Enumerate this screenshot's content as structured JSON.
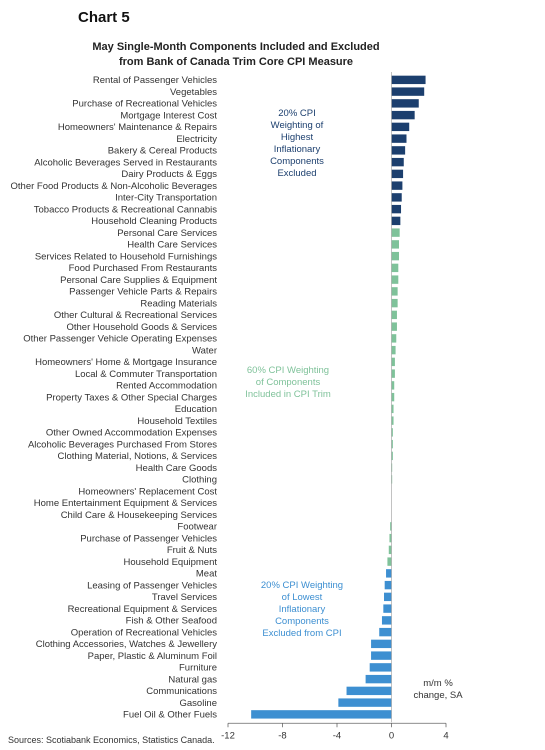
{
  "chart_label": "Chart 5",
  "source": "Sources: Scotiabank Economics, Statistics Canada.",
  "chart_data": {
    "type": "bar",
    "orientation": "horizontal",
    "title": "May Single-Month Components Included and Excluded from Bank of Canada Trim Core CPI Measure",
    "unit_label": [
      "m/m %",
      "change, SA"
    ],
    "xlim": [
      -12,
      4
    ],
    "xticks": [
      -12,
      -8,
      -4,
      0,
      4
    ],
    "grid": false,
    "colors": {
      "high": "#1c3f6e",
      "middle": "#7fc29a",
      "low": "#3d8fd1"
    },
    "categories": [
      "Rental of Passenger Vehicles",
      "Vegetables",
      "Purchase of Recreational Vehicles",
      "Mortgage Interest Cost",
      "Homeowners' Maintenance & Repairs",
      "Electricity",
      "Bakery & Cereal Products",
      "Alcoholic Beverages Served in Restaurants",
      "Dairy Products & Eggs",
      "Other Food Products & Non-Alcoholic Beverages",
      "Inter-City Transportation",
      "Tobacco Products & Recreational Cannabis",
      "Household Cleaning Products",
      "Personal Care Services",
      "Health Care Services",
      "Services Related to Household Furnishings",
      "Food Purchased From Restaurants",
      "Personal Care Supplies & Equipment",
      "Passenger Vehicle Parts & Repairs",
      "Reading Materials",
      "Other Cultural & Recreational Services",
      "Other Household Goods & Services",
      "Other Passenger Vehicle Operating Expenses",
      "Water",
      "Homeowners' Home & Mortgage Insurance",
      "Local & Commuter Transportation",
      "Rented Accommodation",
      "Property Taxes & Other Special Charges",
      "Education",
      "Household Textiles",
      "Other Owned Accommodation Expenses",
      "Alcoholic Beverages Purchased From Stores",
      "Clothing Material, Notions, & Services",
      "Health Care Goods",
      "Clothing",
      "Homeowners' Replacement Cost",
      "Home Entertainment Equipment & Services",
      "Child Care & Housekeeping Services",
      "Footwear",
      "Purchase of Passenger Vehicles",
      "Fruit & Nuts",
      "Household Equipment",
      "Meat",
      "Leasing of Passenger Vehicles",
      "Travel Services",
      "Recreational Equipment & Services",
      "Fish & Other Seafood",
      "Operation of Recreational Vehicles",
      "Clothing Accessories, Watches & Jewellery",
      "Paper, Plastic & Aluminum Foil",
      "Furniture",
      "Natural gas",
      "Communications",
      "Gasoline",
      "Fuel Oil & Other Fuels"
    ],
    "values": [
      2.5,
      2.4,
      2.0,
      1.7,
      1.3,
      1.1,
      1.0,
      0.9,
      0.85,
      0.8,
      0.75,
      0.7,
      0.65,
      0.6,
      0.55,
      0.55,
      0.5,
      0.5,
      0.45,
      0.45,
      0.4,
      0.4,
      0.35,
      0.3,
      0.25,
      0.25,
      0.2,
      0.2,
      0.15,
      0.15,
      0.1,
      0.1,
      0.1,
      0.05,
      0.05,
      0.0,
      0.0,
      0.0,
      -0.1,
      -0.15,
      -0.2,
      -0.3,
      -0.4,
      -0.5,
      -0.55,
      -0.6,
      -0.7,
      -0.9,
      -1.5,
      -1.5,
      -1.6,
      -1.9,
      -3.3,
      -3.9,
      -10.3
    ],
    "groups": [
      {
        "key": "high",
        "start": 0,
        "end": 12,
        "label": [
          "20% CPI",
          "Weighting of",
          "Highest",
          "Inflationary",
          "Components",
          "Excluded"
        ]
      },
      {
        "key": "middle",
        "start": 13,
        "end": 41,
        "label": [
          "60% CPI Weighting",
          "of Components",
          "Included in CPI Trim"
        ]
      },
      {
        "key": "low",
        "start": 42,
        "end": 54,
        "label": [
          "20% CPI Weighting",
          "of Lowest",
          "Inflationary",
          "Components",
          "Excluded from CPI"
        ]
      }
    ]
  }
}
